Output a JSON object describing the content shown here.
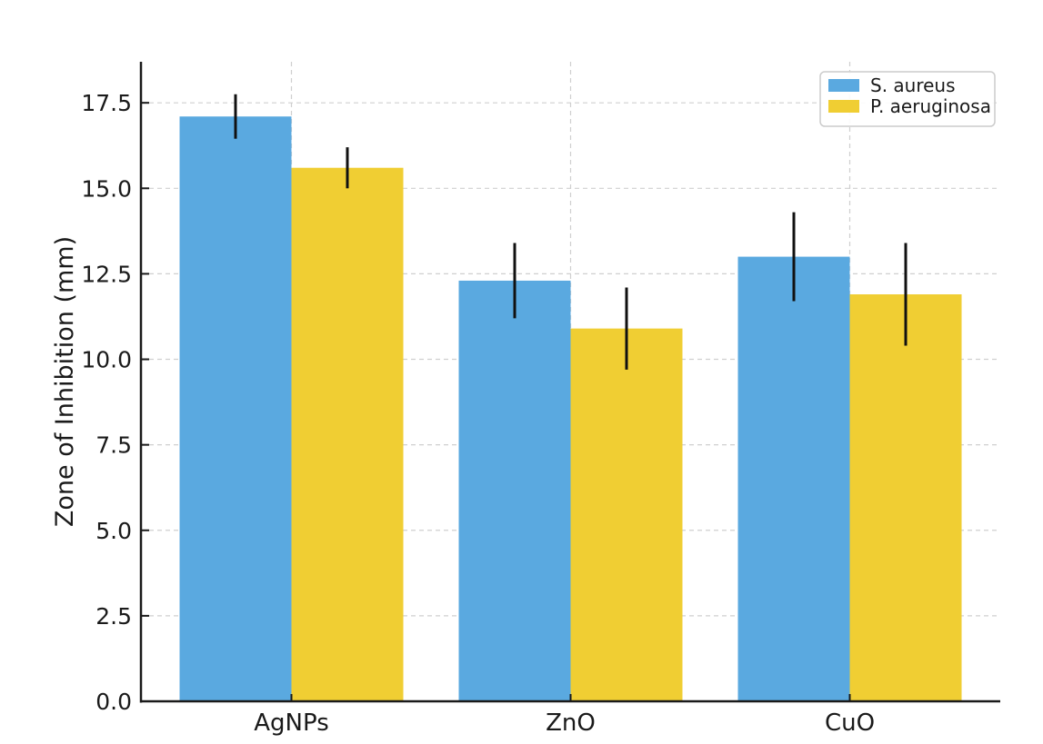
{
  "chart_data": {
    "type": "bar",
    "title": "",
    "xlabel": "",
    "ylabel": "Zone of Inhibition (mm)",
    "categories": [
      "AgNPs",
      "ZnO",
      "CuO"
    ],
    "series": [
      {
        "name": "S. aureus",
        "color": "#5AA9E0",
        "values": [
          17.1,
          12.3,
          13.0
        ],
        "errors": [
          0.65,
          1.1,
          1.3
        ]
      },
      {
        "name": "P. aeruginosa",
        "color": "#F0CE33",
        "values": [
          15.6,
          10.9,
          11.9
        ],
        "errors": [
          0.6,
          1.2,
          1.5
        ]
      }
    ],
    "ylim": [
      0,
      18.7
    ],
    "yticks": [
      "0.0",
      "2.5",
      "5.0",
      "7.5",
      "10.0",
      "12.5",
      "15.0",
      "17.5"
    ],
    "grid": true,
    "grid_style": "dashed",
    "grid_color": "#cfcfcf",
    "error_bar_color": "#111111",
    "axis_color": "#1a1a1a",
    "background": "#ffffff",
    "legend": {
      "position": "upper right",
      "entries": [
        "S. aureus",
        "P. aeruginosa"
      ]
    }
  }
}
